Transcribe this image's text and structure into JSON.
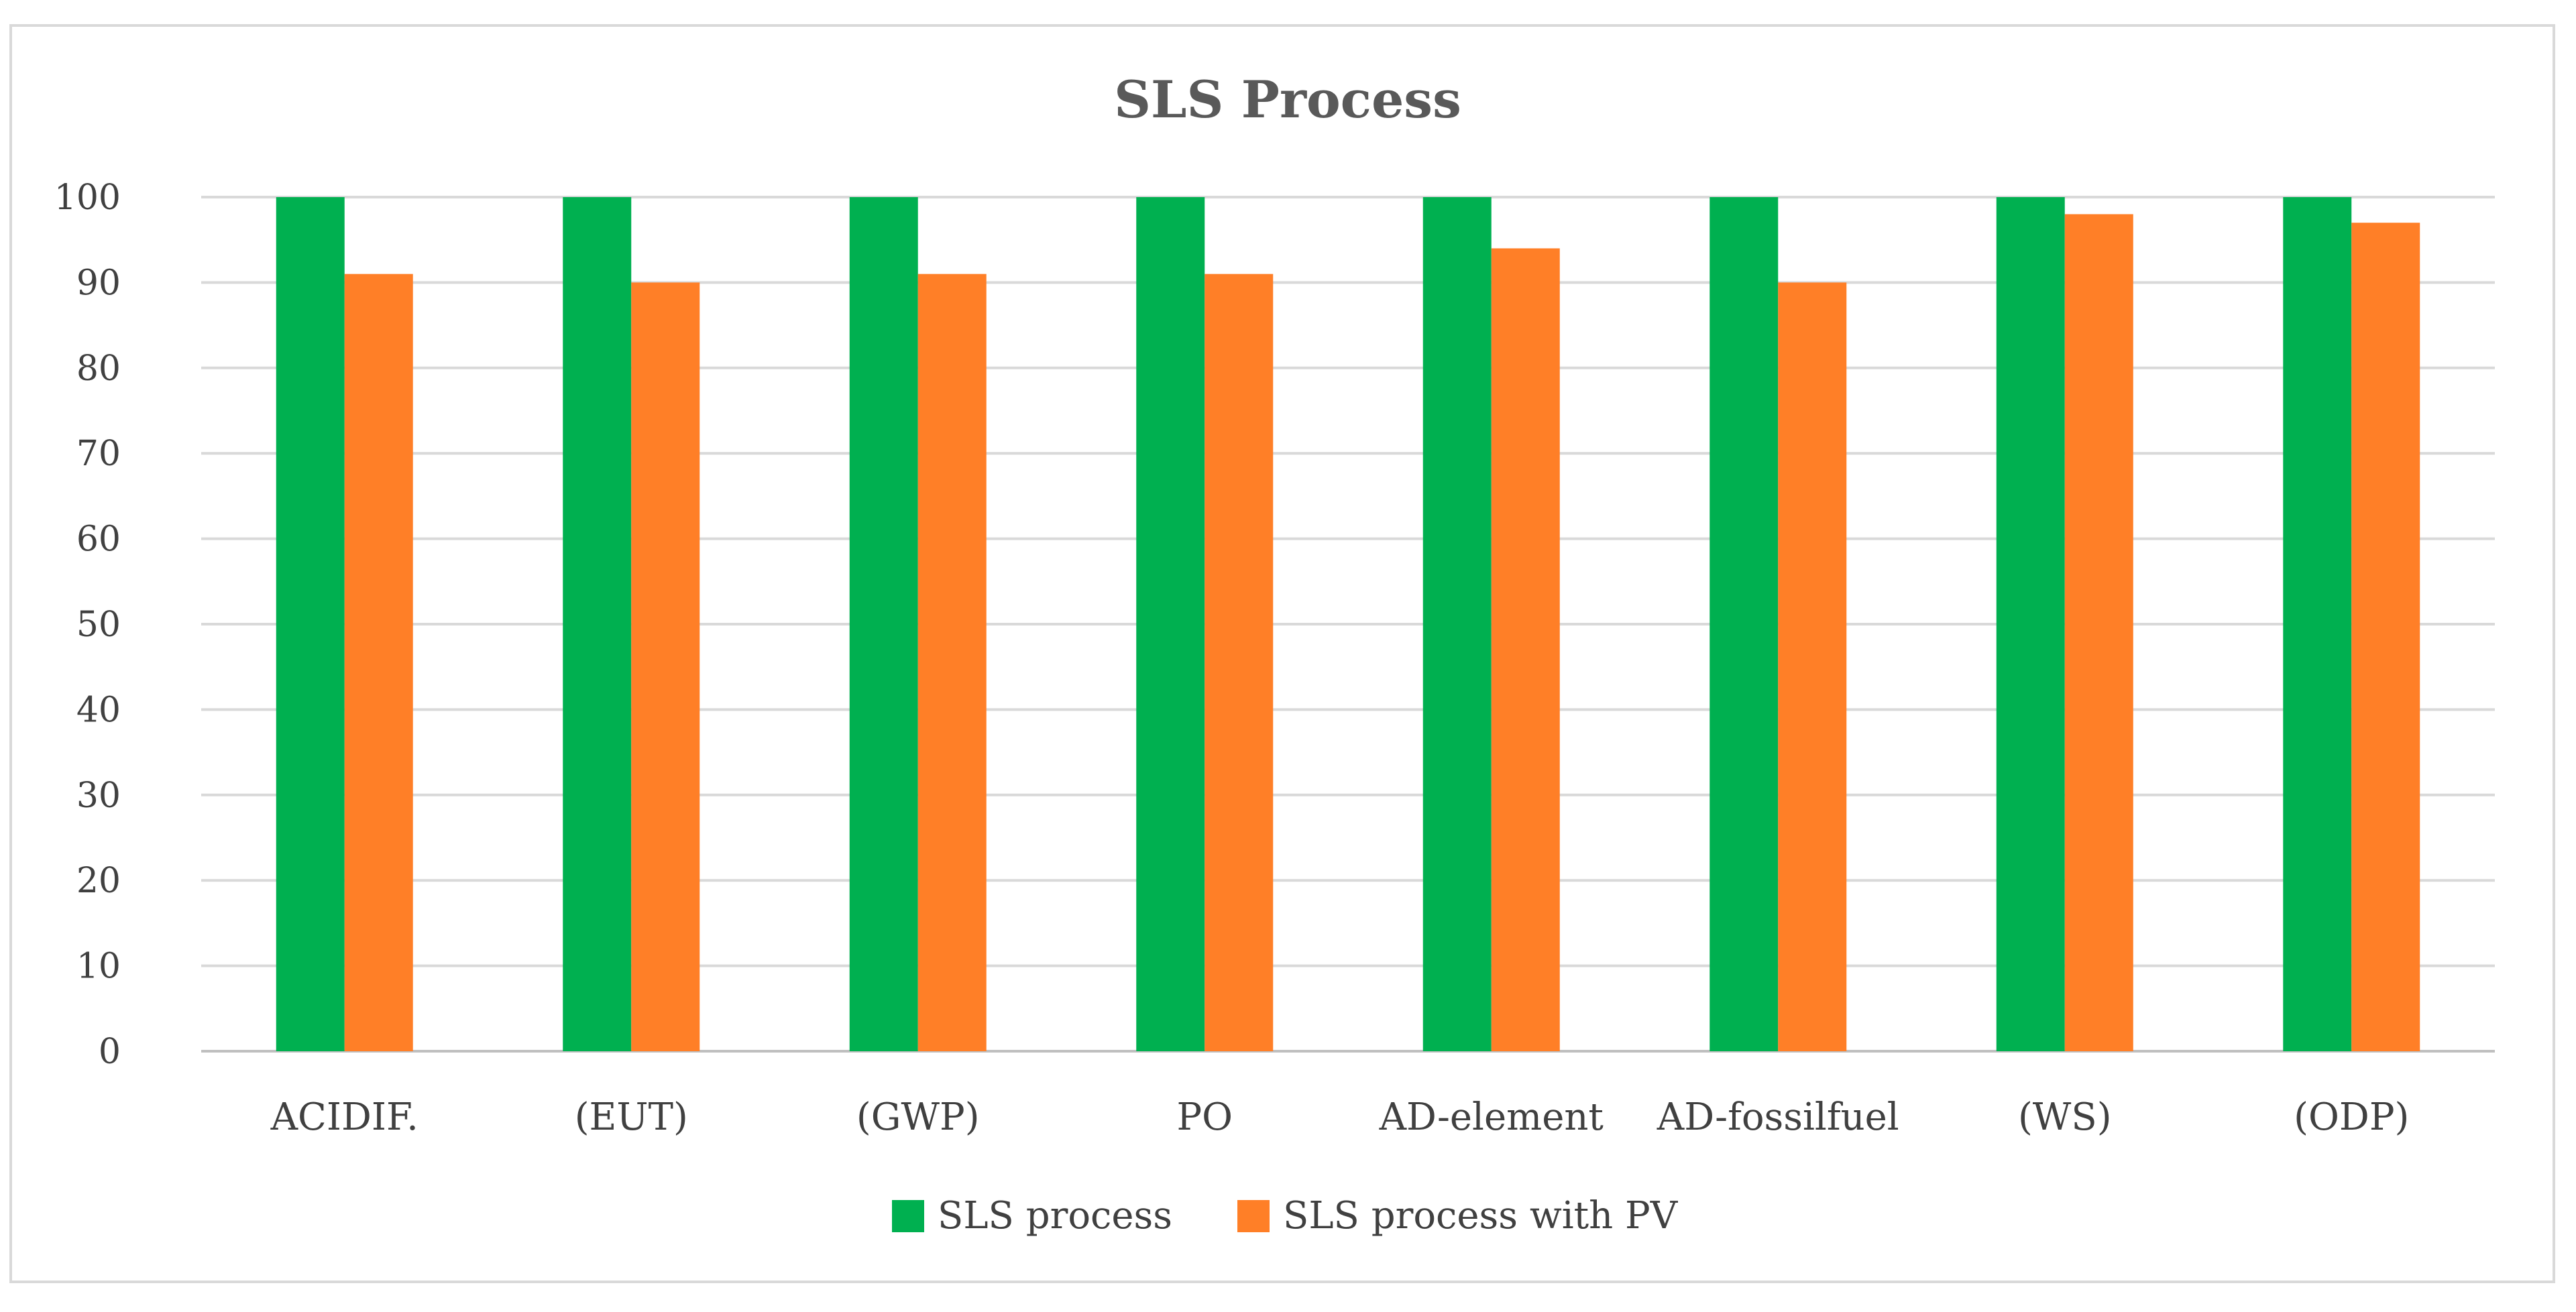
{
  "chart_data": {
    "type": "bar",
    "title": "SLS Process",
    "xlabel": "",
    "ylabel": "",
    "ylim": [
      0,
      100
    ],
    "yticks": [
      0,
      10,
      20,
      30,
      40,
      50,
      60,
      70,
      80,
      90,
      100
    ],
    "grid": true,
    "legend_position": "bottom",
    "categories": [
      "ACIDIF.",
      "(EUT)",
      "(GWP)",
      "PO",
      "AD-element",
      "AD-fossilfuel",
      "(WS)",
      "(ODP)"
    ],
    "series": [
      {
        "name": "SLS process",
        "color": "#00b050",
        "values": [
          100,
          100,
          100,
          100,
          100,
          100,
          100,
          100
        ]
      },
      {
        "name": "SLS process with PV",
        "color": "#ff7f27",
        "values": [
          91,
          90,
          91,
          91,
          94,
          90,
          98,
          97
        ]
      }
    ]
  }
}
